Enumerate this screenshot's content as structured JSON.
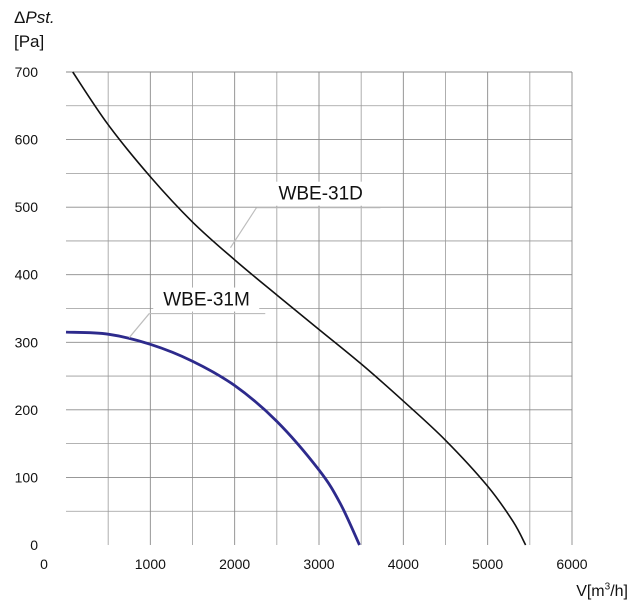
{
  "chart_data": {
    "type": "line",
    "ylabel_symbol": "Δ",
    "ylabel_quantity": "Pst.",
    "ylabel_unit": "[Pa]",
    "xlabel_prefix": "V[m",
    "xlabel_sup": "3",
    "xlabel_suffix": "/h]",
    "xlim": [
      0,
      6000
    ],
    "ylim": [
      0,
      700
    ],
    "x_ticks": [
      0,
      1000,
      2000,
      3000,
      4000,
      5000,
      6000
    ],
    "y_ticks": [
      0,
      100,
      200,
      300,
      400,
      500,
      600,
      700
    ],
    "grid": true,
    "series": [
      {
        "name": "WBE-31D",
        "color": "#111111",
        "x": [
          80,
          500,
          1000,
          1500,
          2000,
          2500,
          3000,
          3500,
          4000,
          4500,
          5000,
          5300,
          5450
        ],
        "y": [
          700,
          622,
          545,
          478,
          422,
          370,
          319,
          268,
          213,
          155,
          87,
          35,
          0
        ]
      },
      {
        "name": "WBE-31M",
        "color": "#2d2a8c",
        "x": [
          0,
          500,
          1000,
          1500,
          2000,
          2500,
          3000,
          3250,
          3480
        ],
        "y": [
          315,
          312,
          297,
          272,
          236,
          183,
          111,
          62,
          0
        ]
      }
    ],
    "annotations": [
      {
        "series": "WBE-31D",
        "text": "WBE-31D",
        "anchor_x": 1950,
        "anchor_y": 440
      },
      {
        "series": "WBE-31M",
        "text": "WBE-31M",
        "anchor_x": 750,
        "anchor_y": 307
      }
    ]
  }
}
